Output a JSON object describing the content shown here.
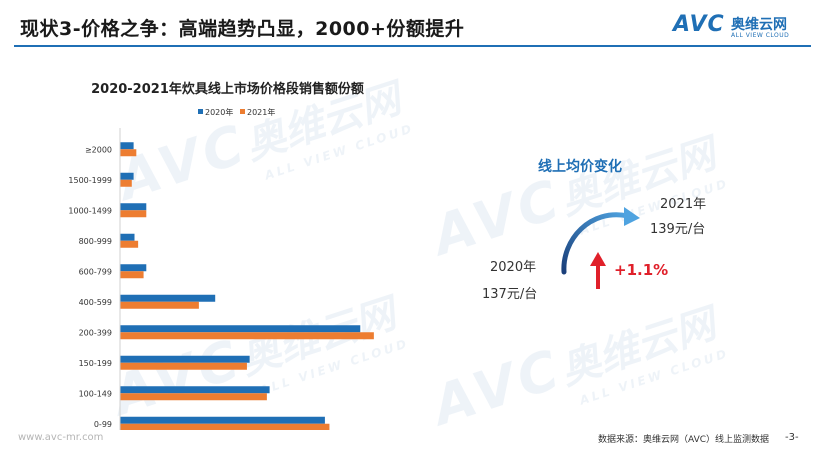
{
  "header": {
    "title": "现状3-价格之争：高端趋势凸显，2000+份额提升",
    "logo_avc": "AVC",
    "logo_cn": "奥维云网",
    "logo_en": "ALL VIEW CLOUD"
  },
  "colors": {
    "series_2020": "#1f6fb5",
    "series_2021": "#ed7d31",
    "accent": "#1f6fb5",
    "positive": "#e0202a"
  },
  "chart_data": {
    "type": "bar",
    "orientation": "horizontal",
    "title": "2020-2021年炊具线上市场价格段销售额份额",
    "categories": [
      "≥2000",
      "1500-1999",
      "1000-1499",
      "800-999",
      "600-799",
      "400-599",
      "200-399",
      "150-199",
      "100-149",
      "0-99"
    ],
    "series": [
      {
        "name": "2020年",
        "values": [
          1.5,
          1.5,
          2.9,
          1.6,
          2.9,
          10.5,
          26.5,
          14.3,
          16.5,
          22.6
        ]
      },
      {
        "name": "2021年",
        "values": [
          1.8,
          1.3,
          2.9,
          2.0,
          2.6,
          8.7,
          28.0,
          14.0,
          16.2,
          23.1
        ]
      }
    ],
    "xlim": [
      0,
      30
    ],
    "xticks": [
      "0.0%",
      "5.0%",
      "10.0%",
      "15.0%",
      "20.0%",
      "25.0%",
      "30.0%"
    ],
    "legend_position": "top",
    "grid": false
  },
  "price_panel": {
    "title": "线上均价变化",
    "year_2021": "2021年",
    "price_2021": "139元/台",
    "year_2020": "2020年",
    "price_2020": "137元/台",
    "change": "+1.1%"
  },
  "footer": {
    "url": "www.avc-mr.com",
    "source": "数据来源：奥维云网（AVC）线上监测数据",
    "page": "-3-"
  }
}
